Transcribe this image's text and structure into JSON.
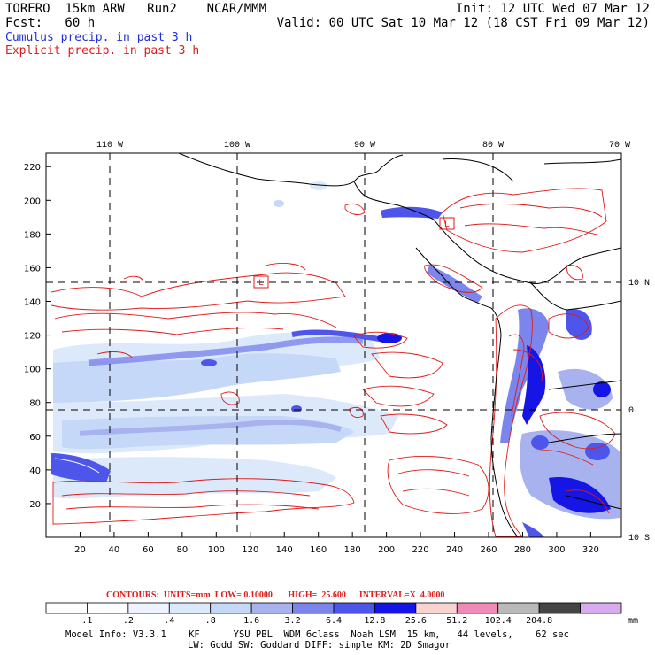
{
  "header": {
    "model": "TORERO  15km ARW   Run2    NCAR/MMM",
    "init": "Init: 12 UTC Wed 07 Mar 12",
    "fcst": "Fcst:   60 h",
    "valid": "Valid: 00 UTC Sat 10 Mar 12 (18 CST Fri 09 Mar 12)",
    "line_cumulus": "Cumulus precip. in past 3 h",
    "line_explicit": "Explicit precip. in past 3 h"
  },
  "map": {
    "lon_labels": [
      "110 W",
      "100 W",
      "90 W",
      "80 W",
      "70 W"
    ],
    "lat_labels": [
      "10 N",
      "0",
      "10 S"
    ],
    "y_ticks": [
      "220",
      "200",
      "180",
      "160",
      "140",
      "120",
      "100",
      "80",
      "60",
      "40",
      "20"
    ],
    "x_ticks": [
      "20",
      "40",
      "60",
      "80",
      "100",
      "120",
      "140",
      "160",
      "180",
      "200",
      "220",
      "240",
      "260",
      "280",
      "300",
      "320"
    ],
    "h_labels": [
      "L",
      "L"
    ],
    "colors": {
      "contour": "#e01a1a",
      "coast": "#000000",
      "grid": "#000000"
    }
  },
  "footer": {
    "contours_line": "CONTOURS:  UNITS=mm  LOW= 0.10000       HIGH=  25.600      INTERVAL=X  4.0000",
    "units": "mm",
    "colorbar": [
      {
        "label": ".1",
        "color": "#ffffff"
      },
      {
        "label": ".2",
        "color": "#ffffff"
      },
      {
        "label": ".4",
        "color": "#eef4ff"
      },
      {
        "label": ".8",
        "color": "#dbe9fb"
      },
      {
        "label": "1.6",
        "color": "#c6d8f7"
      },
      {
        "label": "3.2",
        "color": "#a7b2ef"
      },
      {
        "label": "6.4",
        "color": "#7c85ec"
      },
      {
        "label": "12.8",
        "color": "#4d55ea"
      },
      {
        "label": "25.6",
        "color": "#1515e6"
      },
      {
        "label": "51.2",
        "color": "#f9d2d2"
      },
      {
        "label": "102.4",
        "color": "#f28ab8"
      },
      {
        "label": "204.8",
        "color": "#b9b9b9"
      },
      {
        "label": "",
        "color": "#454545"
      },
      {
        "label": "",
        "color": "#d8aaf0"
      }
    ],
    "model_info_1": "Model Info: V3.3.1    KF      YSU PBL  WDM 6class  Noah LSM  15 km,   44 levels,    62 sec",
    "model_info_2": "LW: Godd SW: Goddard DIFF: simple KM: 2D Smagor"
  }
}
